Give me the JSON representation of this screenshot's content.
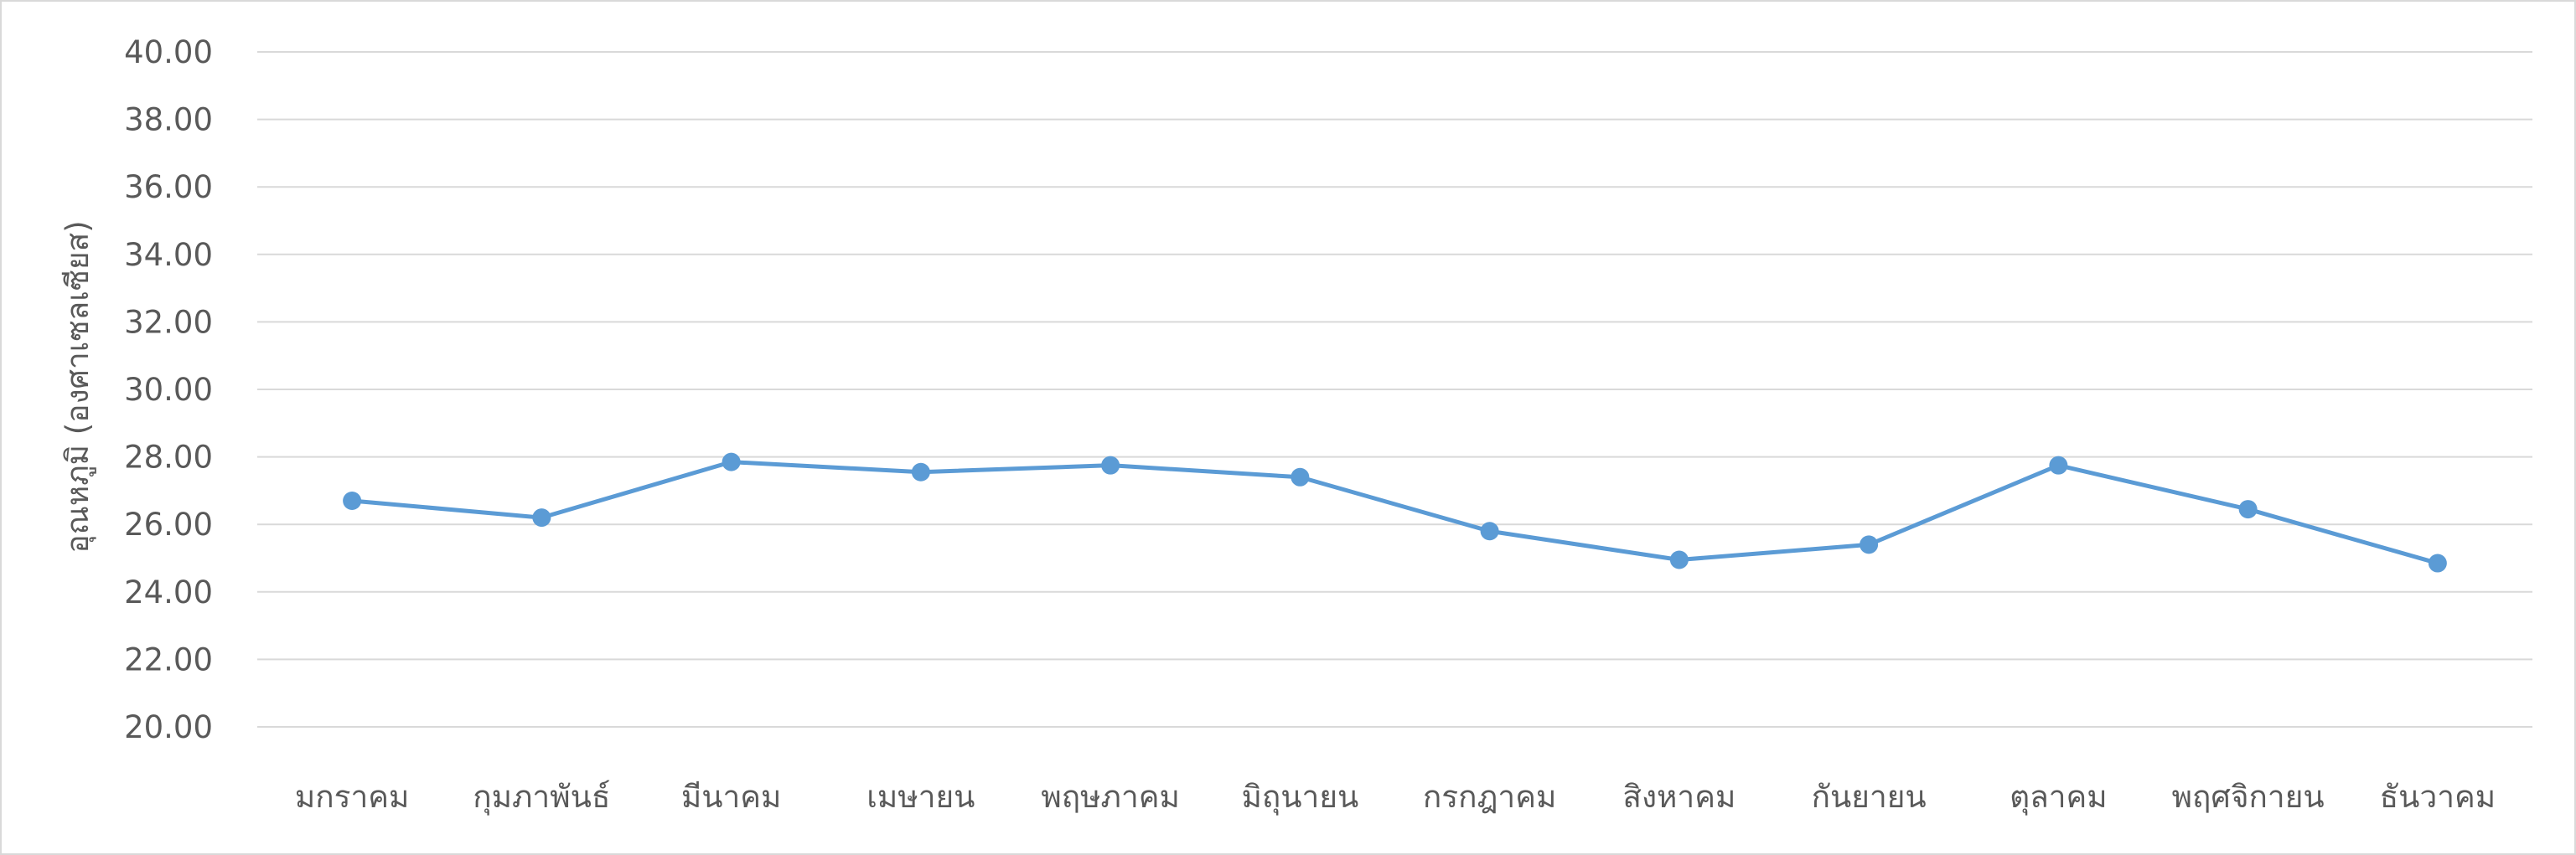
{
  "chart_data": {
    "type": "line",
    "title": "",
    "xlabel": "",
    "ylabel": "อุณหภูมิ (องศาเซลเซียส)",
    "ylim": [
      20,
      40
    ],
    "y_ticks": [
      "20.00",
      "22.00",
      "24.00",
      "26.00",
      "28.00",
      "30.00",
      "32.00",
      "34.00",
      "36.00",
      "38.00",
      "40.00"
    ],
    "categories": [
      "มกราคม",
      "กุมภาพันธ์",
      "มีนาคม",
      "เมษายน",
      "พฤษภาคม",
      "มิถุนายน",
      "กรกฎาคม",
      "สิงหาคม",
      "กันยายน",
      "ตุลาคม",
      "พฤศจิกายน",
      "ธันวาคม"
    ],
    "series": [
      {
        "color": "#5b9bd5",
        "values": [
          26.7,
          26.2,
          27.85,
          27.55,
          27.75,
          27.4,
          25.8,
          24.95,
          25.4,
          27.75,
          26.45,
          24.85
        ]
      }
    ],
    "grid": true,
    "legend": "none"
  }
}
